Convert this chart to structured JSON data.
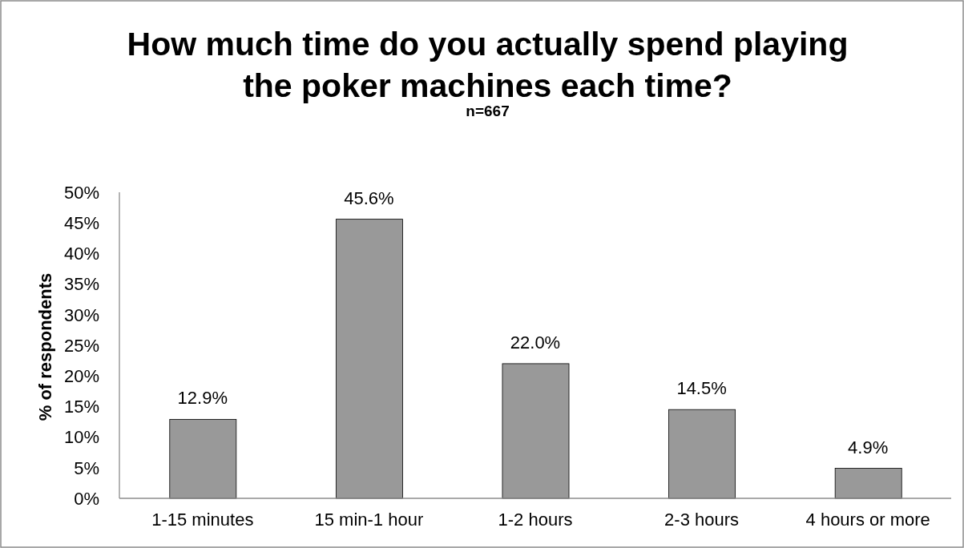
{
  "chart_data": {
    "type": "bar",
    "title": "How much time do you actually spend playing the poker machines each time?",
    "subtitle": "n=667",
    "ylabel": "% of respondents",
    "categories": [
      "1-15 minutes",
      "15 min-1 hour",
      "1-2 hours",
      "2-3 hours",
      "4 hours or more"
    ],
    "values": [
      12.9,
      45.6,
      22.0,
      14.5,
      4.9
    ],
    "color": "#999999",
    "value_labels": [
      "12.9%",
      "45.6%",
      "22.0%",
      "14.5%",
      "4.9%"
    ],
    "ylim": [
      0,
      50
    ],
    "yticks": [
      {
        "value": 0,
        "label": "0%"
      },
      {
        "value": 5,
        "label": "5%"
      },
      {
        "value": 10,
        "label": "10%"
      },
      {
        "value": 15,
        "label": "15%"
      },
      {
        "value": 20,
        "label": "20%"
      },
      {
        "value": 25,
        "label": "25%"
      },
      {
        "value": 30,
        "label": "30%"
      },
      {
        "value": 35,
        "label": "35%"
      },
      {
        "value": 40,
        "label": "40%"
      },
      {
        "value": 45,
        "label": "45%"
      },
      {
        "value": 50,
        "label": "50%"
      }
    ],
    "grid": false
  }
}
